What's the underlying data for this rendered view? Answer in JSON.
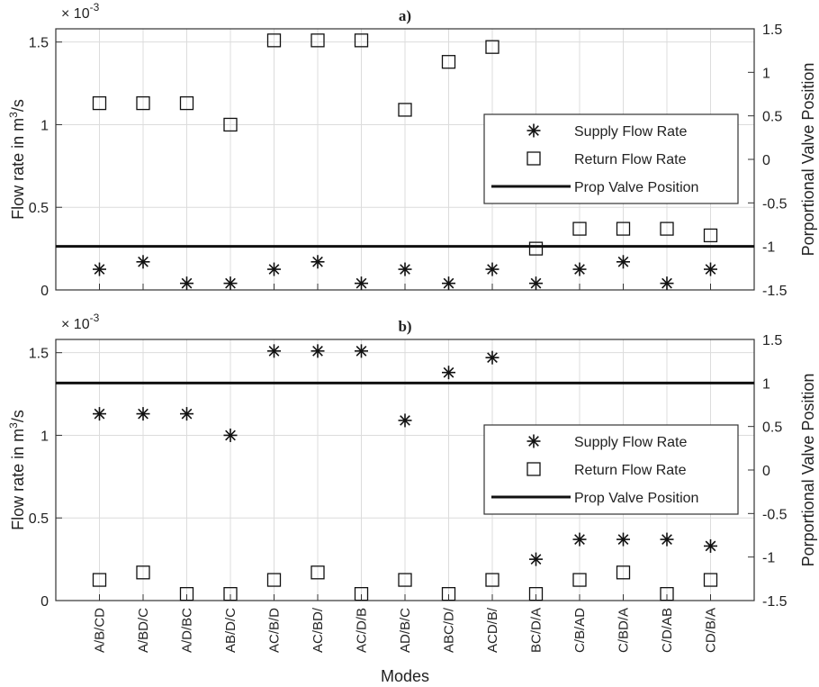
{
  "chart_data": [
    {
      "type": "scatter",
      "title": "a)",
      "categories": [
        "A/B/CD",
        "A/BD/C",
        "A/D/BC",
        "AB/D/C",
        "AC/B/D",
        "AC/BD/",
        "AC/D/B",
        "AD/B/C",
        "ABC/D/",
        "ACD/B/",
        "BC/D/A",
        "C/B/AD",
        "C/BD/A",
        "C/D/AB",
        "CD/B/A"
      ],
      "ylabel": "Flow rate in m³/s",
      "ylabel_main": "Flow rate in m",
      "ylabel_sup": "3",
      "ylabel_end": "/s",
      "y_multiplier_base": "× 10",
      "y_multiplier_exp": "-3",
      "y2label": "Porportional Valve Position",
      "ylim": [
        0,
        0.00158
      ],
      "y2lim": [
        -1.5,
        1.5
      ],
      "yticks": [
        0,
        0.0005,
        0.001,
        0.0015
      ],
      "yticklabels": [
        "0",
        "0.5",
        "1",
        "1.5"
      ],
      "y2ticks": [
        -1.5,
        -1,
        -0.5,
        0,
        0.5,
        1,
        1.5
      ],
      "y2ticklabels": [
        "-1.5",
        "-1",
        "-0.5",
        "0",
        "0.5",
        "1",
        "1.5"
      ],
      "grid": true,
      "legend_position": "right",
      "series": [
        {
          "name": "Supply Flow Rate",
          "marker": "asterisk",
          "axis": "left",
          "values": [
            0.000125,
            0.00017,
            4e-05,
            4e-05,
            0.000125,
            0.00017,
            4e-05,
            0.000125,
            4e-05,
            0.000125,
            4e-05,
            0.000125,
            0.00017,
            4e-05,
            0.000125
          ]
        },
        {
          "name": "Return Flow Rate",
          "marker": "square",
          "axis": "left",
          "values": [
            0.00113,
            0.00113,
            0.00113,
            0.001,
            0.00151,
            0.00151,
            0.00151,
            0.00109,
            0.00138,
            0.00147,
            0.00025,
            0.00037,
            0.00037,
            0.00037,
            0.00033
          ]
        },
        {
          "name": "Prop Valve Position",
          "marker": "line",
          "axis": "right",
          "value": -1
        }
      ]
    },
    {
      "type": "scatter",
      "title": "b)",
      "categories": [
        "A/B/CD",
        "A/BD/C",
        "A/D/BC",
        "AB/D/C",
        "AC/B/D",
        "AC/BD/",
        "AC/D/B",
        "AD/B/C",
        "ABC/D/",
        "ACD/B/",
        "BC/D/A",
        "C/B/AD",
        "C/BD/A",
        "C/D/AB",
        "CD/B/A"
      ],
      "xlabel": "Modes",
      "ylabel": "Flow rate in m³/s",
      "ylabel_main": "Flow rate in m",
      "ylabel_sup": "3",
      "ylabel_end": "/s",
      "y_multiplier_base": "× 10",
      "y_multiplier_exp": "-3",
      "y2label": "Porportional Valve Position",
      "ylim": [
        0,
        0.00158
      ],
      "y2lim": [
        -1.5,
        1.5
      ],
      "yticks": [
        0,
        0.0005,
        0.001,
        0.0015
      ],
      "yticklabels": [
        "0",
        "0.5",
        "1",
        "1.5"
      ],
      "y2ticks": [
        -1.5,
        -1,
        -0.5,
        0,
        0.5,
        1,
        1.5
      ],
      "y2ticklabels": [
        "-1.5",
        "-1",
        "-0.5",
        "0",
        "0.5",
        "1",
        "1.5"
      ],
      "grid": true,
      "legend_position": "right",
      "series": [
        {
          "name": "Supply Flow Rate",
          "marker": "asterisk",
          "axis": "left",
          "values": [
            0.00113,
            0.00113,
            0.00113,
            0.001,
            0.00151,
            0.00151,
            0.00151,
            0.00109,
            0.00138,
            0.00147,
            0.00025,
            0.00037,
            0.00037,
            0.00037,
            0.00033
          ]
        },
        {
          "name": "Return Flow Rate",
          "marker": "square",
          "axis": "left",
          "values": [
            0.000125,
            0.00017,
            4e-05,
            4e-05,
            0.000125,
            0.00017,
            4e-05,
            0.000125,
            4e-05,
            0.000125,
            4e-05,
            0.000125,
            0.00017,
            4e-05,
            0.000125
          ]
        },
        {
          "name": "Prop Valve Position",
          "marker": "line",
          "axis": "right",
          "value": 1
        }
      ]
    }
  ]
}
